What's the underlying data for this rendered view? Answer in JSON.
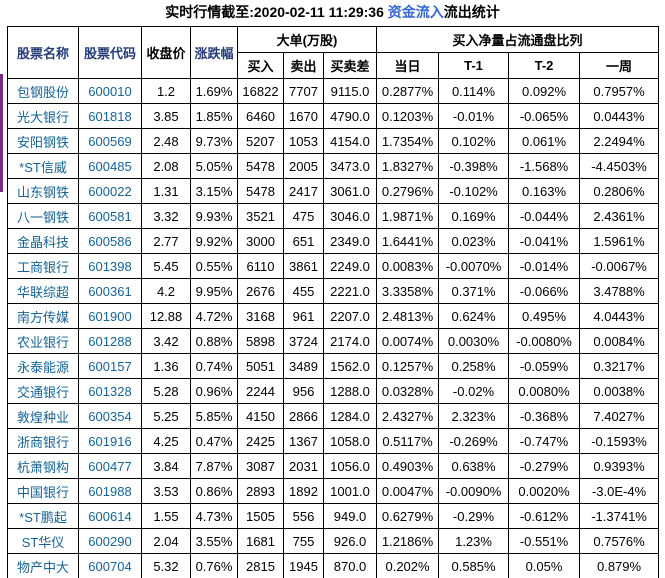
{
  "title": {
    "prefix": "实时行情截至:2020-02-11 11:29:36 ",
    "highlight": "资金流入",
    "suffix": "流出统计"
  },
  "colors": {
    "link_blue": "#176394",
    "header_navy": "#263c78",
    "title_blue": "#3568cf",
    "accent_bar_purple": "#7a2a85",
    "border_black": "#000000"
  },
  "table": {
    "headers": {
      "stock_name": "股票名称",
      "stock_code": "股票代码",
      "close_price": "收盘价",
      "change_pct": "涨跌幅",
      "large_order_group": "大单(万股)",
      "buy": "买入",
      "sell": "卖出",
      "buy_sell_diff": "买卖差",
      "net_ratio_group": "买入净量占流通盘比列",
      "today": "当日",
      "t_minus_1": "T-1",
      "t_minus_2": "T-2",
      "one_week": "一周"
    },
    "rows": [
      [
        "包钢股份",
        "600010",
        "1.2",
        "1.69%",
        "16822",
        "7707",
        "9115.0",
        "0.2877%",
        "0.114%",
        "0.092%",
        "0.7957%"
      ],
      [
        "光大银行",
        "601818",
        "3.85",
        "1.85%",
        "6460",
        "1670",
        "4790.0",
        "0.1203%",
        "-0.01%",
        "-0.065%",
        "0.0443%"
      ],
      [
        "安阳钢铁",
        "600569",
        "2.48",
        "9.73%",
        "5207",
        "1053",
        "4154.0",
        "1.7354%",
        "0.102%",
        "0.061%",
        "2.2494%"
      ],
      [
        "*ST信威",
        "600485",
        "2.08",
        "5.05%",
        "5478",
        "2005",
        "3473.0",
        "1.8327%",
        "-0.398%",
        "-1.568%",
        "-4.4503%"
      ],
      [
        "山东钢铁",
        "600022",
        "1.31",
        "3.15%",
        "5478",
        "2417",
        "3061.0",
        "0.2796%",
        "-0.102%",
        "0.163%",
        "0.2806%"
      ],
      [
        "八一钢铁",
        "600581",
        "3.32",
        "9.93%",
        "3521",
        "475",
        "3046.0",
        "1.9871%",
        "0.169%",
        "-0.044%",
        "2.4361%"
      ],
      [
        "金晶科技",
        "600586",
        "2.77",
        "9.92%",
        "3000",
        "651",
        "2349.0",
        "1.6441%",
        "0.023%",
        "-0.041%",
        "1.5961%"
      ],
      [
        "工商银行",
        "601398",
        "5.45",
        "0.55%",
        "6110",
        "3861",
        "2249.0",
        "0.0083%",
        "-0.0070%",
        "-0.014%",
        "-0.0067%"
      ],
      [
        "华联综超",
        "600361",
        "4.2",
        "9.95%",
        "2676",
        "455",
        "2221.0",
        "3.3358%",
        "0.371%",
        "-0.066%",
        "3.4788%"
      ],
      [
        "南方传媒",
        "601900",
        "12.88",
        "4.72%",
        "3168",
        "961",
        "2207.0",
        "2.4813%",
        "0.624%",
        "0.495%",
        "4.0443%"
      ],
      [
        "农业银行",
        "601288",
        "3.42",
        "0.88%",
        "5898",
        "3724",
        "2174.0",
        "0.0074%",
        "0.0030%",
        "-0.0080%",
        "0.0084%"
      ],
      [
        "永泰能源",
        "600157",
        "1.36",
        "0.74%",
        "5051",
        "3489",
        "1562.0",
        "0.1257%",
        "0.258%",
        "-0.059%",
        "0.3217%"
      ],
      [
        "交通银行",
        "601328",
        "5.28",
        "0.96%",
        "2244",
        "956",
        "1288.0",
        "0.0328%",
        "-0.02%",
        "0.0080%",
        "0.0038%"
      ],
      [
        "敦煌种业",
        "600354",
        "5.25",
        "5.85%",
        "4150",
        "2866",
        "1284.0",
        "2.4327%",
        "2.323%",
        "-0.368%",
        "7.4027%"
      ],
      [
        "浙商银行",
        "601916",
        "4.25",
        "0.47%",
        "2425",
        "1367",
        "1058.0",
        "0.5117%",
        "-0.269%",
        "-0.747%",
        "-0.1593%"
      ],
      [
        "杭萧钢构",
        "600477",
        "3.84",
        "7.87%",
        "3087",
        "2031",
        "1056.0",
        "0.4903%",
        "0.638%",
        "-0.279%",
        "0.9393%"
      ],
      [
        "中国银行",
        "601988",
        "3.53",
        "0.86%",
        "2893",
        "1892",
        "1001.0",
        "0.0047%",
        "-0.0090%",
        "0.0020%",
        "-3.0E-4%"
      ],
      [
        "*ST鹏起",
        "600614",
        "1.55",
        "4.73%",
        "1505",
        "556",
        "949.0",
        "0.6279%",
        "-0.29%",
        "-0.612%",
        "-1.3741%"
      ],
      [
        "ST华仪",
        "600290",
        "2.04",
        "3.55%",
        "1681",
        "755",
        "926.0",
        "1.2186%",
        "1.23%",
        "-0.551%",
        "0.7576%"
      ],
      [
        "物产中大",
        "600704",
        "5.32",
        "0.76%",
        "2815",
        "1945",
        "870.0",
        "0.202%",
        "0.585%",
        "0.05%",
        "0.879%"
      ]
    ]
  }
}
